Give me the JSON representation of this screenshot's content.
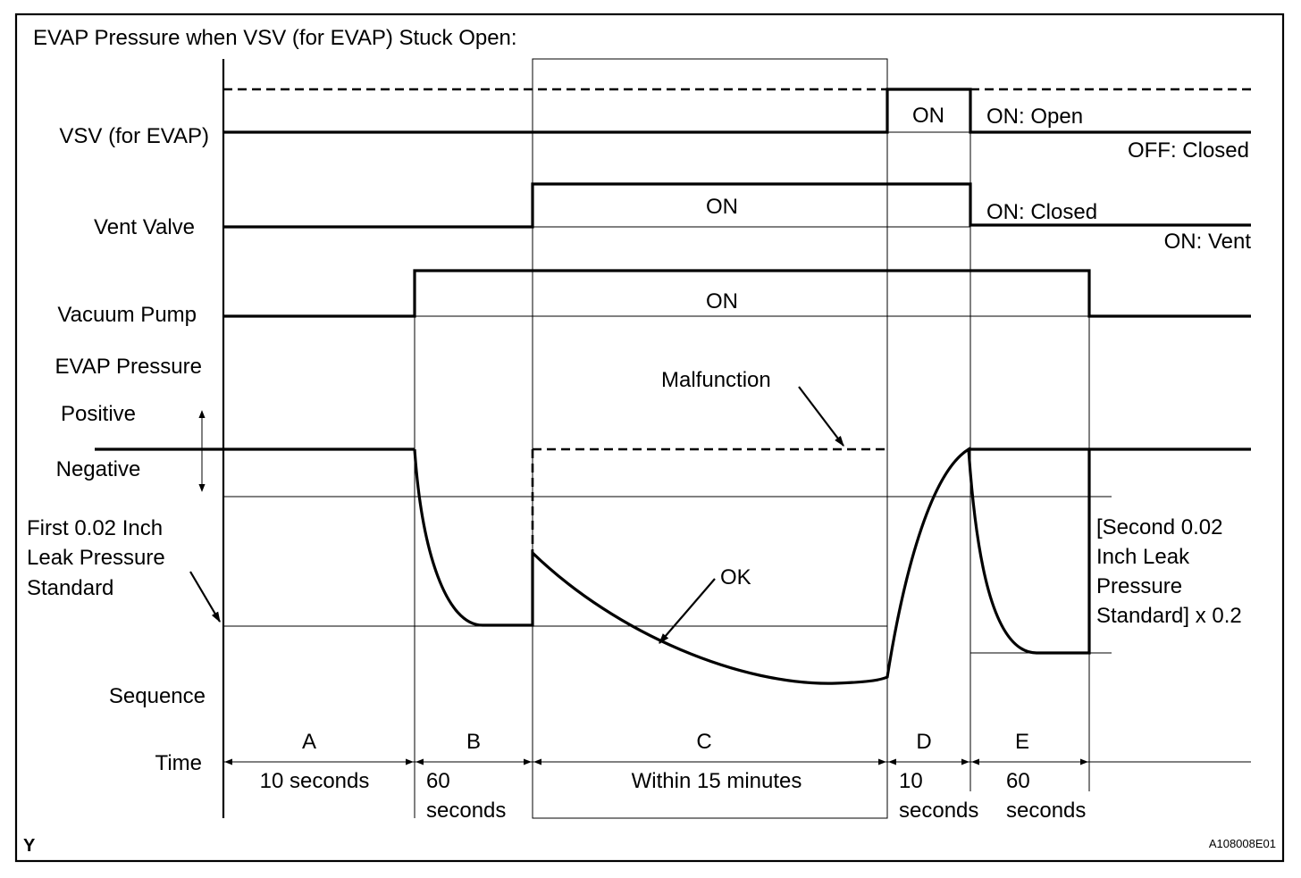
{
  "title": "EVAP Pressure when VSV (for EVAP) Stuck Open:",
  "row_labels": {
    "vsv": "VSV (for EVAP)",
    "vent_valve": "Vent Valve",
    "vacuum_pump": "Vacuum Pump",
    "evap_pressure": "EVAP Pressure",
    "positive": "Positive",
    "negative": "Negative",
    "first_standard": [
      "First 0.02 Inch",
      "Leak Pressure",
      "Standard"
    ],
    "sequence": "Sequence",
    "time": "Time"
  },
  "state_labels": {
    "vsv_on": "ON",
    "vsv_on_open": "ON: Open",
    "vsv_off_closed": "OFF: Closed",
    "vent_on": "ON",
    "vent_on_closed": "ON: Closed",
    "vent_on_vent": "ON: Vent",
    "pump_on": "ON"
  },
  "annotations": {
    "malfunction": "Malfunction",
    "ok": "OK",
    "second_standard": [
      "[Second 0.02",
      "Inch Leak",
      "Pressure",
      "Standard] x 0.2"
    ]
  },
  "sequence": [
    {
      "letter": "A",
      "time": [
        "10 seconds"
      ]
    },
    {
      "letter": "B",
      "time": [
        "60",
        "seconds"
      ]
    },
    {
      "letter": "C",
      "time": [
        "Within 15 minutes"
      ]
    },
    {
      "letter": "D",
      "time": [
        "10",
        "seconds"
      ]
    },
    {
      "letter": "E",
      "time": [
        "60",
        "seconds"
      ]
    }
  ],
  "footer": {
    "left_mark": "Y",
    "figure_id": "A108008E01"
  }
}
